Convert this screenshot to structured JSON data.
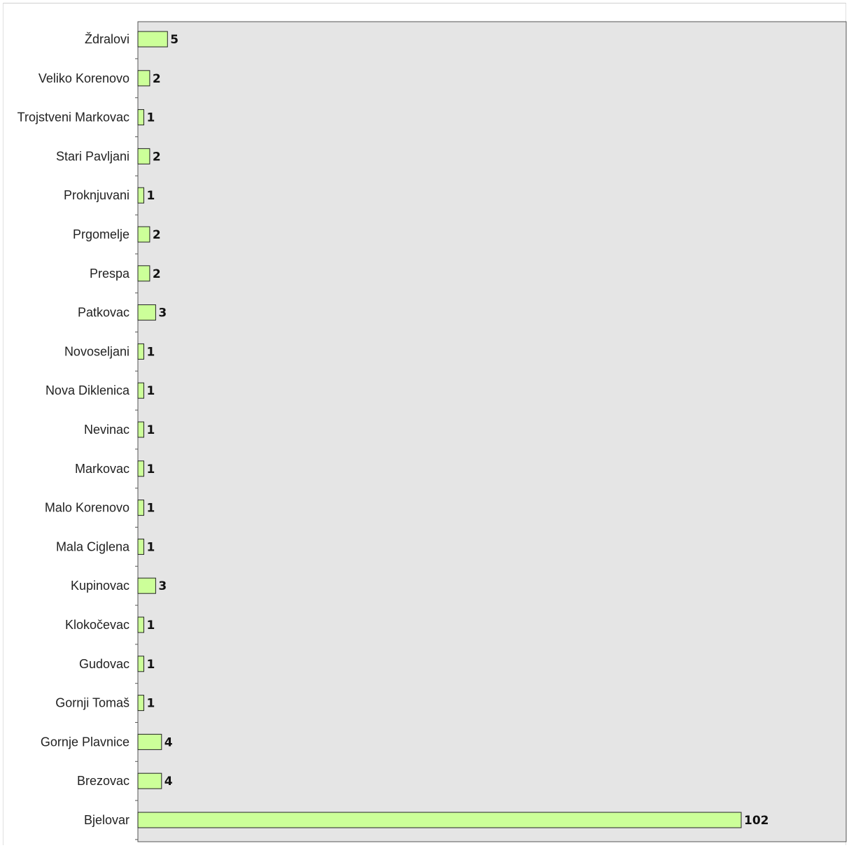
{
  "chart_data": {
    "type": "bar",
    "orientation": "horizontal",
    "categories": [
      "Ždralovi",
      "Veliko Korenovo",
      "Trojstveni Markovac",
      "Stari Pavljani",
      "Proknjuvani",
      "Prgomelje",
      "Prespa",
      "Patkovac",
      "Novoseljani",
      "Nova Diklenica",
      "Nevinac",
      "Markovac",
      "Malo Korenovo",
      "Mala Ciglena",
      "Kupinovac",
      "Klokočevac",
      "Gudovac",
      "Gornji Tomaš",
      "Gornje Plavnice",
      "Brezovac",
      "Bjelovar"
    ],
    "values": [
      5,
      2,
      1,
      2,
      1,
      2,
      2,
      3,
      1,
      1,
      1,
      1,
      1,
      1,
      3,
      1,
      1,
      1,
      4,
      4,
      102
    ],
    "data_labels": [
      "5",
      "2",
      "1",
      "2",
      "1",
      "2",
      "2",
      "3",
      "1",
      "1",
      "1",
      "1",
      "1",
      "1",
      "3",
      "1",
      "1",
      "1",
      "4",
      "4",
      "102"
    ],
    "xlim": [
      0,
      102
    ],
    "grid": false,
    "legend": "none",
    "colors": {
      "bar_fill": "#ccff99",
      "bar_stroke": "#222222",
      "plot_background": "#e5e5e5",
      "axis": "#333333",
      "text": "#222222"
    }
  }
}
